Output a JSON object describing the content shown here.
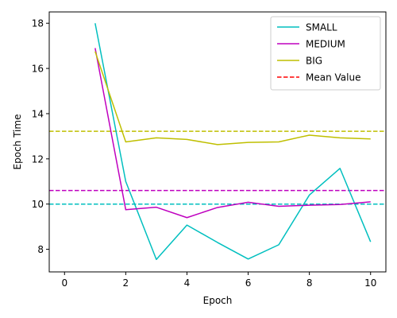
{
  "chart_data": {
    "type": "line",
    "xlabel": "Epoch",
    "ylabel": "Epoch Time",
    "xlim": [
      -0.5,
      10.5
    ],
    "ylim": [
      7.0,
      18.5
    ],
    "xticks": [
      0,
      2,
      4,
      6,
      8,
      10
    ],
    "yticks": [
      8,
      10,
      12,
      14,
      16,
      18
    ],
    "grid": false,
    "legend_position": "top-right",
    "x": [
      1,
      2,
      3,
      4,
      5,
      6,
      7,
      8,
      9,
      10
    ],
    "series": [
      {
        "name": "SMALL",
        "color": "#00bfbf",
        "values": [
          18.0,
          11.0,
          7.55,
          9.07,
          8.3,
          7.57,
          8.2,
          10.4,
          11.58,
          8.33
        ]
      },
      {
        "name": "MEDIUM",
        "color": "#bf00bf",
        "values": [
          16.9,
          9.75,
          9.86,
          9.4,
          9.85,
          10.08,
          9.9,
          9.95,
          9.98,
          10.1
        ]
      },
      {
        "name": "BIG",
        "color": "#bfbf00",
        "values": [
          16.75,
          12.75,
          12.93,
          12.86,
          12.63,
          12.73,
          12.75,
          13.05,
          12.93,
          12.88
        ]
      }
    ],
    "reference_lines": [
      {
        "series": "SMALL",
        "color": "#00bfbf",
        "value": 10.0
      },
      {
        "series": "MEDIUM",
        "color": "#bf00bf",
        "value": 10.6
      },
      {
        "series": "BIG",
        "color": "#bfbf00",
        "value": 13.22
      }
    ],
    "legend": [
      {
        "label": "SMALL",
        "color": "#00bfbf",
        "style": "solid"
      },
      {
        "label": "MEDIUM",
        "color": "#bf00bf",
        "style": "solid"
      },
      {
        "label": "BIG",
        "color": "#bfbf00",
        "style": "solid"
      },
      {
        "label": "Mean Value",
        "color": "#ff0000",
        "style": "dashed"
      }
    ]
  }
}
